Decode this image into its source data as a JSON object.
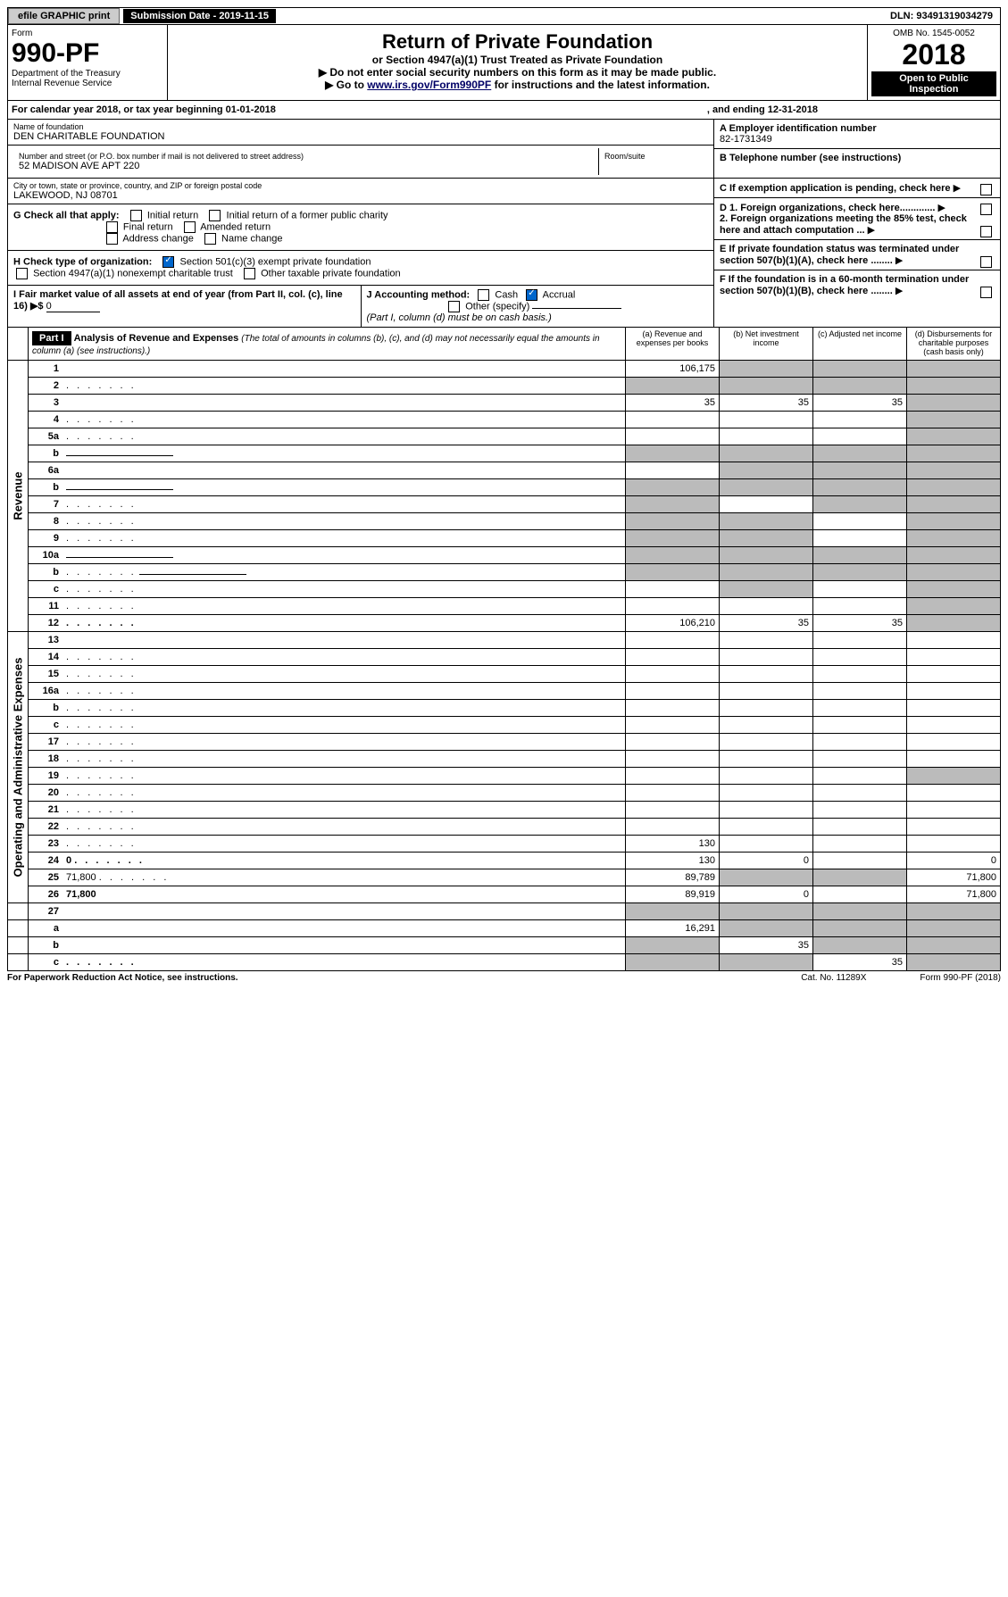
{
  "topbar": {
    "efile": "efile GRAPHIC print",
    "submission": "Submission Date - 2019-11-15",
    "dln": "DLN: 93491319034279"
  },
  "header": {
    "form": "Form",
    "form_no": "990-PF",
    "dept": "Department of the Treasury",
    "irs": "Internal Revenue Service",
    "title": "Return of Private Foundation",
    "subtitle": "or Section 4947(a)(1) Trust Treated as Private Foundation",
    "note1": "▶ Do not enter social security numbers on this form as it may be made public.",
    "note2_pre": "▶ Go to ",
    "note2_link": "www.irs.gov/Form990PF",
    "note2_post": " for instructions and the latest information.",
    "omb": "OMB No. 1545-0052",
    "year": "2018",
    "open": "Open to Public Inspection"
  },
  "calendar": {
    "text": "For calendar year 2018, or tax year beginning 01-01-2018",
    "ending": ", and ending 12-31-2018"
  },
  "info": {
    "name_lbl": "Name of foundation",
    "name": "DEN CHARITABLE FOUNDATION",
    "addr_lbl": "Number and street (or P.O. box number if mail is not delivered to street address)",
    "addr": "52 MADISON AVE APT 220",
    "room_lbl": "Room/suite",
    "city_lbl": "City or town, state or province, country, and ZIP or foreign postal code",
    "city": "LAKEWOOD, NJ  08701",
    "a_lbl": "A Employer identification number",
    "a_val": "82-1731349",
    "b_lbl": "B Telephone number (see instructions)",
    "c_lbl": "C If exemption application is pending, check here",
    "d1": "D 1. Foreign organizations, check here.............",
    "d2": "2. Foreign organizations meeting the 85% test, check here and attach computation ...",
    "e_lbl": "E  If private foundation status was terminated under section 507(b)(1)(A), check here ........",
    "f_lbl": "F  If the foundation is in a 60-month termination under section 507(b)(1)(B), check here ........"
  },
  "checks": {
    "g_lbl": "G Check all that apply:",
    "g_opts": [
      "Initial return",
      "Initial return of a former public charity",
      "Final return",
      "Amended return",
      "Address change",
      "Name change"
    ],
    "h_lbl": "H Check type of organization:",
    "h1": "Section 501(c)(3) exempt private foundation",
    "h2": "Section 4947(a)(1) nonexempt charitable trust",
    "h3": "Other taxable private foundation",
    "i_lbl": "I Fair market value of all assets at end of year (from Part II, col. (c), line 16) ▶$",
    "i_val": "0",
    "j_lbl": "J Accounting method:",
    "j_cash": "Cash",
    "j_accrual": "Accrual",
    "j_other": "Other (specify)",
    "j_note": "(Part I, column (d) must be on cash basis.)"
  },
  "part1": {
    "label": "Part I",
    "title": "Analysis of Revenue and Expenses",
    "title_note": "(The total of amounts in columns (b), (c), and (d) may not necessarily equal the amounts in column (a) (see instructions).)",
    "col_a": "(a)  Revenue and expenses per books",
    "col_b": "(b)  Net investment income",
    "col_c": "(c)  Adjusted net income",
    "col_d": "(d)  Disbursements for charitable purposes (cash basis only)"
  },
  "sections": {
    "revenue": "Revenue",
    "expenses": "Operating and Administrative Expenses"
  },
  "rows": [
    {
      "n": "1",
      "d": "",
      "a": "106,175",
      "b": "",
      "c": "",
      "shade_b": true,
      "shade_c": true,
      "shade_d": true
    },
    {
      "n": "2",
      "d": "",
      "a": "",
      "b": "",
      "c": "",
      "shade_a": true,
      "shade_b": true,
      "shade_c": true,
      "shade_d": true,
      "dots": true,
      "bold_not": true
    },
    {
      "n": "3",
      "d": "",
      "a": "35",
      "b": "35",
      "c": "35",
      "shade_d": true
    },
    {
      "n": "4",
      "d": "",
      "a": "",
      "b": "",
      "c": "",
      "shade_d": true,
      "dots": true
    },
    {
      "n": "5a",
      "d": "",
      "a": "",
      "b": "",
      "c": "",
      "shade_d": true,
      "dots": true
    },
    {
      "n": "b",
      "d": "",
      "a": "",
      "b": "",
      "c": "",
      "shade_a": true,
      "shade_b": true,
      "shade_c": true,
      "shade_d": true,
      "under": true
    },
    {
      "n": "6a",
      "d": "",
      "a": "",
      "b": "",
      "c": "",
      "shade_b": true,
      "shade_c": true,
      "shade_d": true
    },
    {
      "n": "b",
      "d": "",
      "a": "",
      "b": "",
      "c": "",
      "shade_a": true,
      "shade_b": true,
      "shade_c": true,
      "shade_d": true,
      "under": true
    },
    {
      "n": "7",
      "d": "",
      "a": "",
      "b": "",
      "c": "",
      "shade_a": true,
      "shade_c": true,
      "shade_d": true,
      "dots": true
    },
    {
      "n": "8",
      "d": "",
      "a": "",
      "b": "",
      "c": "",
      "shade_a": true,
      "shade_b": true,
      "shade_d": true,
      "dots": true
    },
    {
      "n": "9",
      "d": "",
      "a": "",
      "b": "",
      "c": "",
      "shade_a": true,
      "shade_b": true,
      "shade_d": true,
      "dots": true
    },
    {
      "n": "10a",
      "d": "",
      "a": "",
      "b": "",
      "c": "",
      "shade_a": true,
      "shade_b": true,
      "shade_c": true,
      "shade_d": true,
      "under": true
    },
    {
      "n": "b",
      "d": "",
      "a": "",
      "b": "",
      "c": "",
      "shade_a": true,
      "shade_b": true,
      "shade_c": true,
      "shade_d": true,
      "dots": true,
      "under": true
    },
    {
      "n": "c",
      "d": "",
      "a": "",
      "b": "",
      "c": "",
      "shade_b": true,
      "shade_d": true,
      "dots": true
    },
    {
      "n": "11",
      "d": "",
      "a": "",
      "b": "",
      "c": "",
      "shade_d": true,
      "dots": true
    },
    {
      "n": "12",
      "d": "",
      "a": "106,210",
      "b": "35",
      "c": "35",
      "bold": true,
      "shade_d": true,
      "dots": true
    },
    {
      "n": "13",
      "d": "",
      "a": "",
      "b": "",
      "c": "",
      "sec": "exp"
    },
    {
      "n": "14",
      "d": "",
      "a": "",
      "b": "",
      "c": "",
      "dots": true
    },
    {
      "n": "15",
      "d": "",
      "a": "",
      "b": "",
      "c": "",
      "dots": true
    },
    {
      "n": "16a",
      "d": "",
      "a": "",
      "b": "",
      "c": "",
      "dots": true
    },
    {
      "n": "b",
      "d": "",
      "a": "",
      "b": "",
      "c": "",
      "dots": true
    },
    {
      "n": "c",
      "d": "",
      "a": "",
      "b": "",
      "c": "",
      "dots": true
    },
    {
      "n": "17",
      "d": "",
      "a": "",
      "b": "",
      "c": "",
      "dots": true
    },
    {
      "n": "18",
      "d": "",
      "a": "",
      "b": "",
      "c": "",
      "dots": true
    },
    {
      "n": "19",
      "d": "",
      "a": "",
      "b": "",
      "c": "",
      "shade_d": true,
      "dots": true
    },
    {
      "n": "20",
      "d": "",
      "a": "",
      "b": "",
      "c": "",
      "dots": true
    },
    {
      "n": "21",
      "d": "",
      "a": "",
      "b": "",
      "c": "",
      "dots": true
    },
    {
      "n": "22",
      "d": "",
      "a": "",
      "b": "",
      "c": "",
      "dots": true
    },
    {
      "n": "23",
      "d": "",
      "a": "130",
      "b": "",
      "c": "",
      "dots": true
    },
    {
      "n": "24",
      "d": "0",
      "a": "130",
      "b": "0",
      "c": "",
      "bold": true,
      "dots": true
    },
    {
      "n": "25",
      "d": "71,800",
      "a": "89,789",
      "b": "",
      "c": "",
      "shade_b": true,
      "shade_c": true,
      "dots": true
    },
    {
      "n": "26",
      "d": "71,800",
      "a": "89,919",
      "b": "0",
      "c": "",
      "bold": true
    },
    {
      "n": "27",
      "d": "",
      "a": "",
      "b": "",
      "c": "",
      "shade_a": true,
      "shade_b": true,
      "shade_c": true,
      "shade_d": true,
      "sec": "end"
    },
    {
      "n": "a",
      "d": "",
      "a": "16,291",
      "b": "",
      "c": "",
      "bold": true,
      "shade_b": true,
      "shade_c": true,
      "shade_d": true
    },
    {
      "n": "b",
      "d": "",
      "a": "",
      "b": "35",
      "c": "",
      "bold": true,
      "shade_a": true,
      "shade_c": true,
      "shade_d": true
    },
    {
      "n": "c",
      "d": "",
      "a": "",
      "b": "",
      "c": "35",
      "bold": true,
      "shade_a": true,
      "shade_b": true,
      "shade_d": true,
      "dots": true
    }
  ],
  "footer": {
    "pra": "For Paperwork Reduction Act Notice, see instructions.",
    "cat": "Cat. No. 11289X",
    "form": "Form 990-PF (2018)"
  }
}
